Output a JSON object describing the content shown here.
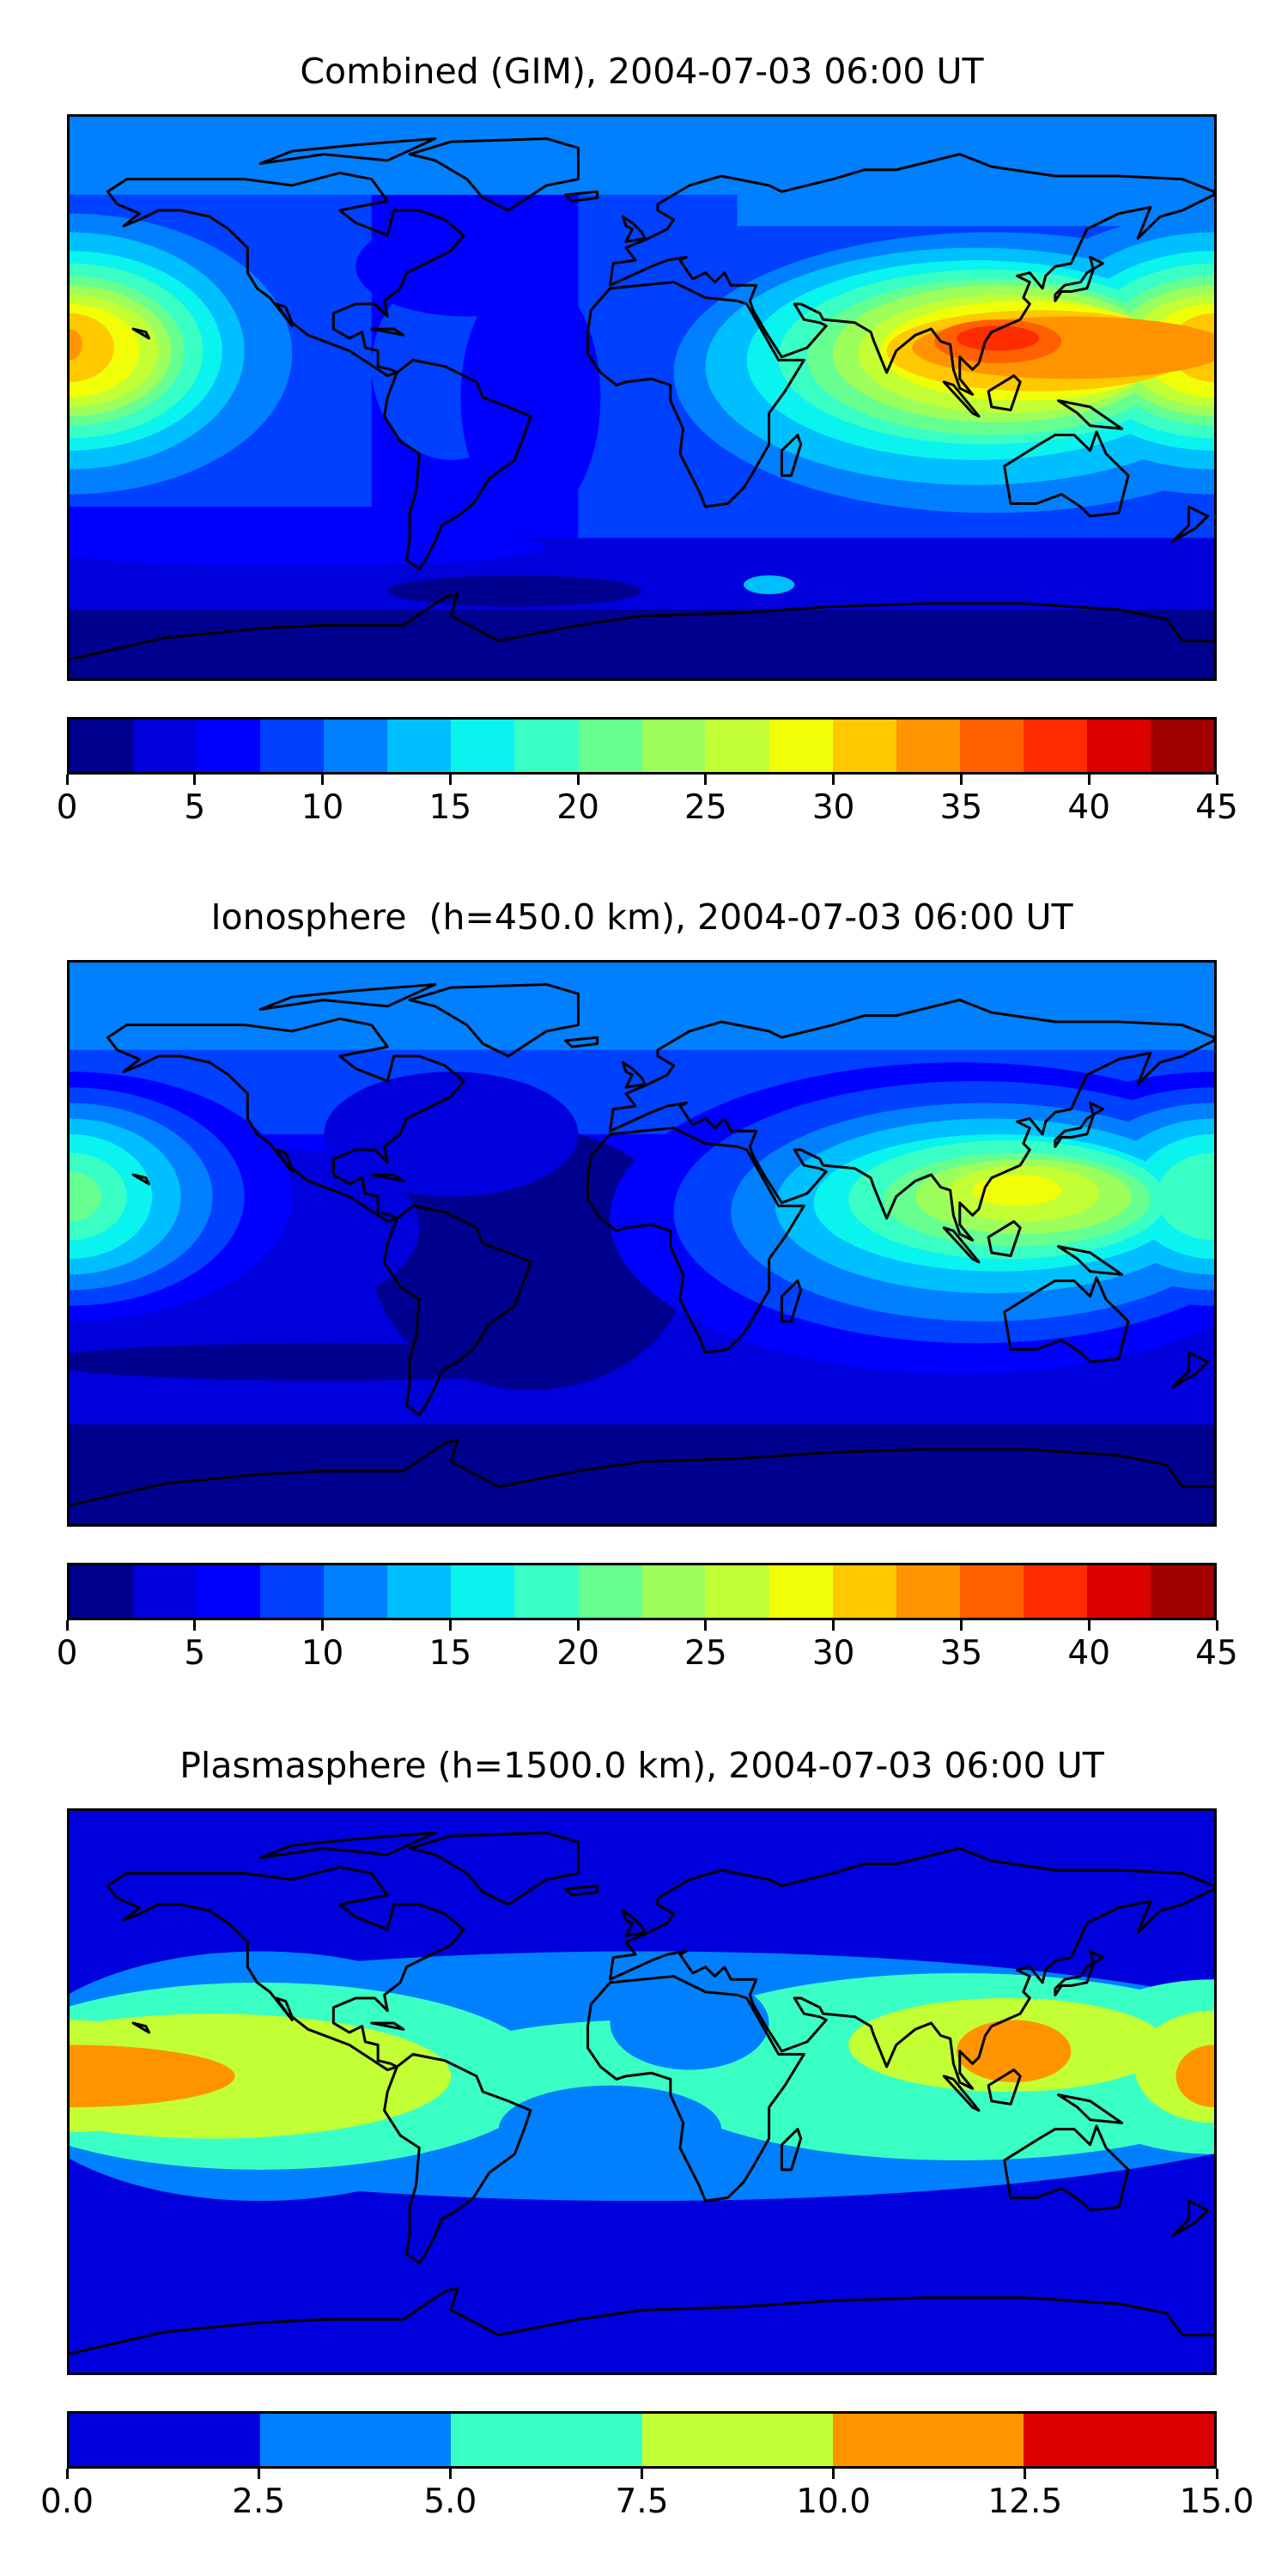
{
  "panels": [
    {
      "title": "Combined (GIM), 2004-07-03 06:00 UT",
      "colorbar": {
        "range": [
          0,
          45
        ],
        "ticks": [
          0,
          5,
          10,
          15,
          20,
          25,
          30,
          35,
          40,
          45
        ],
        "tick_labels": [
          "0",
          "5",
          "10",
          "15",
          "20",
          "25",
          "30",
          "35",
          "40",
          "45"
        ],
        "colors": [
          "#00008f",
          "#0000dc",
          "#0000ff",
          "#0040ff",
          "#0080ff",
          "#00bfff",
          "#0af3ee",
          "#3affc4",
          "#66ff90",
          "#9cff5c",
          "#c3ff35",
          "#f0ff08",
          "#ffc800",
          "#ff9400",
          "#ff6000",
          "#ff2c00",
          "#dd0000",
          "#a00000"
        ]
      }
    },
    {
      "title": "Ionosphere  (h=450.0 km), 2004-07-03 06:00 UT",
      "colorbar": {
        "range": [
          0,
          45
        ],
        "ticks": [
          0,
          5,
          10,
          15,
          20,
          25,
          30,
          35,
          40,
          45
        ],
        "tick_labels": [
          "0",
          "5",
          "10",
          "15",
          "20",
          "25",
          "30",
          "35",
          "40",
          "45"
        ],
        "colors": [
          "#00008f",
          "#0000dc",
          "#0000ff",
          "#0040ff",
          "#0080ff",
          "#00bfff",
          "#0af3ee",
          "#3affc4",
          "#66ff90",
          "#9cff5c",
          "#c3ff35",
          "#f0ff08",
          "#ffc800",
          "#ff9400",
          "#ff6000",
          "#ff2c00",
          "#dd0000",
          "#a00000"
        ]
      }
    },
    {
      "title": "Plasmasphere (h=1500.0 km), 2004-07-03 06:00 UT",
      "colorbar": {
        "range": [
          0,
          15
        ],
        "ticks": [
          0,
          2.5,
          5,
          7.5,
          10,
          12.5,
          15
        ],
        "tick_labels": [
          "0.0",
          "2.5",
          "5.0",
          "7.5",
          "10.0",
          "12.5",
          "15.0"
        ],
        "colors": [
          "#0000dc",
          "#0080ff",
          "#3affc4",
          "#c3ff35",
          "#ff9400",
          "#dd0000"
        ]
      }
    }
  ]
}
